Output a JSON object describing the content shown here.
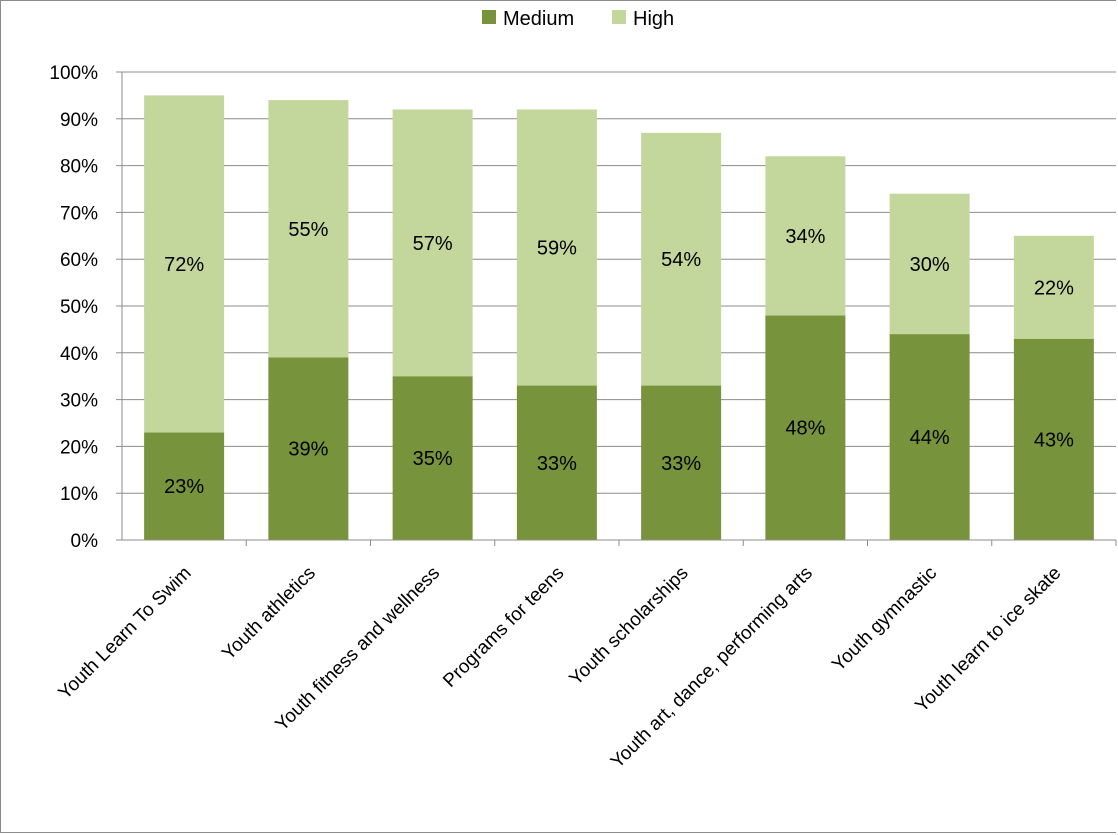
{
  "chart_data": {
    "type": "bar",
    "stacked": true,
    "categories": [
      "Youth Learn To Swim",
      "Youth athletics",
      "Youth fitness and wellness",
      "Programs for teens",
      "Youth scholarships",
      "Youth art, dance, performing arts",
      "Youth gymnastic",
      "Youth learn to ice skate"
    ],
    "series": [
      {
        "name": "Medium",
        "values": [
          23,
          39,
          35,
          33,
          33,
          48,
          44,
          43
        ],
        "labels": [
          "23%",
          "39%",
          "35%",
          "33%",
          "33%",
          "48%",
          "44%",
          "43%"
        ],
        "color": "#77933c"
      },
      {
        "name": "High",
        "values": [
          72,
          55,
          57,
          59,
          54,
          34,
          30,
          22
        ],
        "labels": [
          "72%",
          "55%",
          "57%",
          "59%",
          "54%",
          "34%",
          "30%",
          "22%"
        ],
        "color": "#c3d69b"
      }
    ],
    "ylim": [
      0,
      100
    ],
    "yticks": [
      "0%",
      "10%",
      "20%",
      "30%",
      "40%",
      "50%",
      "60%",
      "70%",
      "80%",
      "90%",
      "100%"
    ],
    "grid": true,
    "legend_position": "top",
    "title": "",
    "xlabel": "",
    "ylabel": ""
  }
}
